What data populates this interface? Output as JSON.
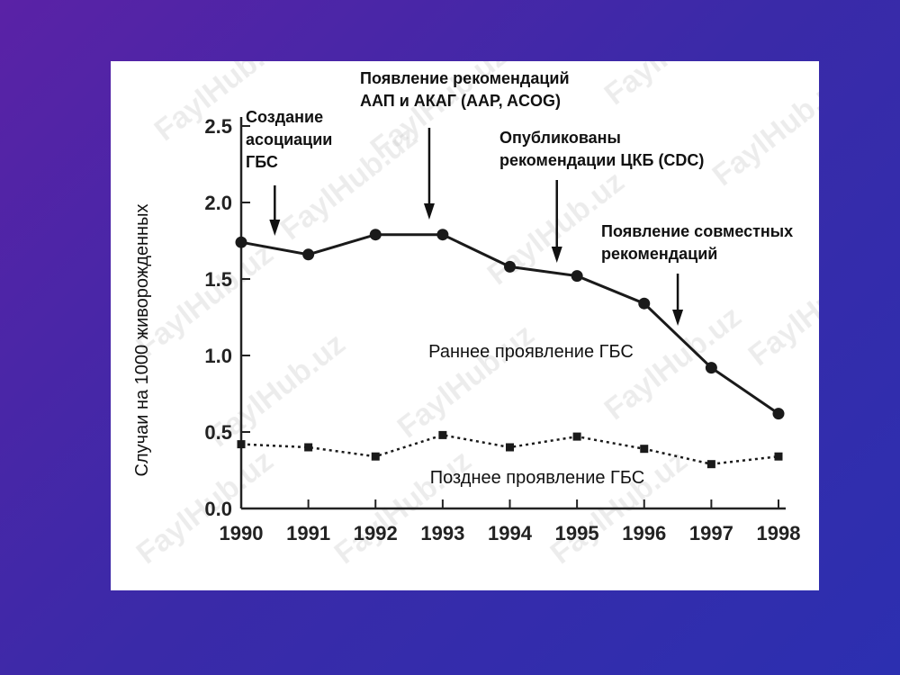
{
  "watermark": "FaylHub.uz",
  "chart_data": {
    "type": "line",
    "x": [
      1990,
      1991,
      1992,
      1993,
      1994,
      1995,
      1996,
      1997,
      1998
    ],
    "xlim": [
      1990,
      1998
    ],
    "ylim": [
      0.0,
      2.5
    ],
    "yticks": [
      "0.0",
      "0.5",
      "1.0",
      "1.5",
      "2.0",
      "2.5"
    ],
    "xticks": [
      "1990",
      "1991",
      "1992",
      "1993",
      "1994",
      "1995",
      "1996",
      "1997",
      "1998"
    ],
    "ylabel": "Случаи на 1000 живорожденных",
    "series": [
      {
        "name": "Раннее проявление ГБС",
        "style": "solid",
        "marker": "circle",
        "values": [
          1.74,
          1.66,
          1.79,
          1.79,
          1.58,
          1.52,
          1.34,
          0.92,
          0.62
        ]
      },
      {
        "name": "Позднее проявление ГБС",
        "style": "dotted",
        "marker": "square",
        "values": [
          0.42,
          0.4,
          0.34,
          0.48,
          0.4,
          0.47,
          0.39,
          0.29,
          0.34
        ]
      }
    ],
    "annotations": [
      {
        "lines": [
          "Создание",
          "асоциации",
          "ГБС"
        ],
        "x": 1990.5
      },
      {
        "lines": [
          "Появление рекомендаций",
          "ААП и АКАГ (AAP, ACOG)"
        ],
        "x": 1992.8
      },
      {
        "lines": [
          "Опубликованы",
          "рекомендации ЦКБ (CDC)"
        ],
        "x": 1994.7
      },
      {
        "lines": [
          "Появление совместных",
          "рекомендаций"
        ],
        "x": 1996.5
      }
    ]
  }
}
